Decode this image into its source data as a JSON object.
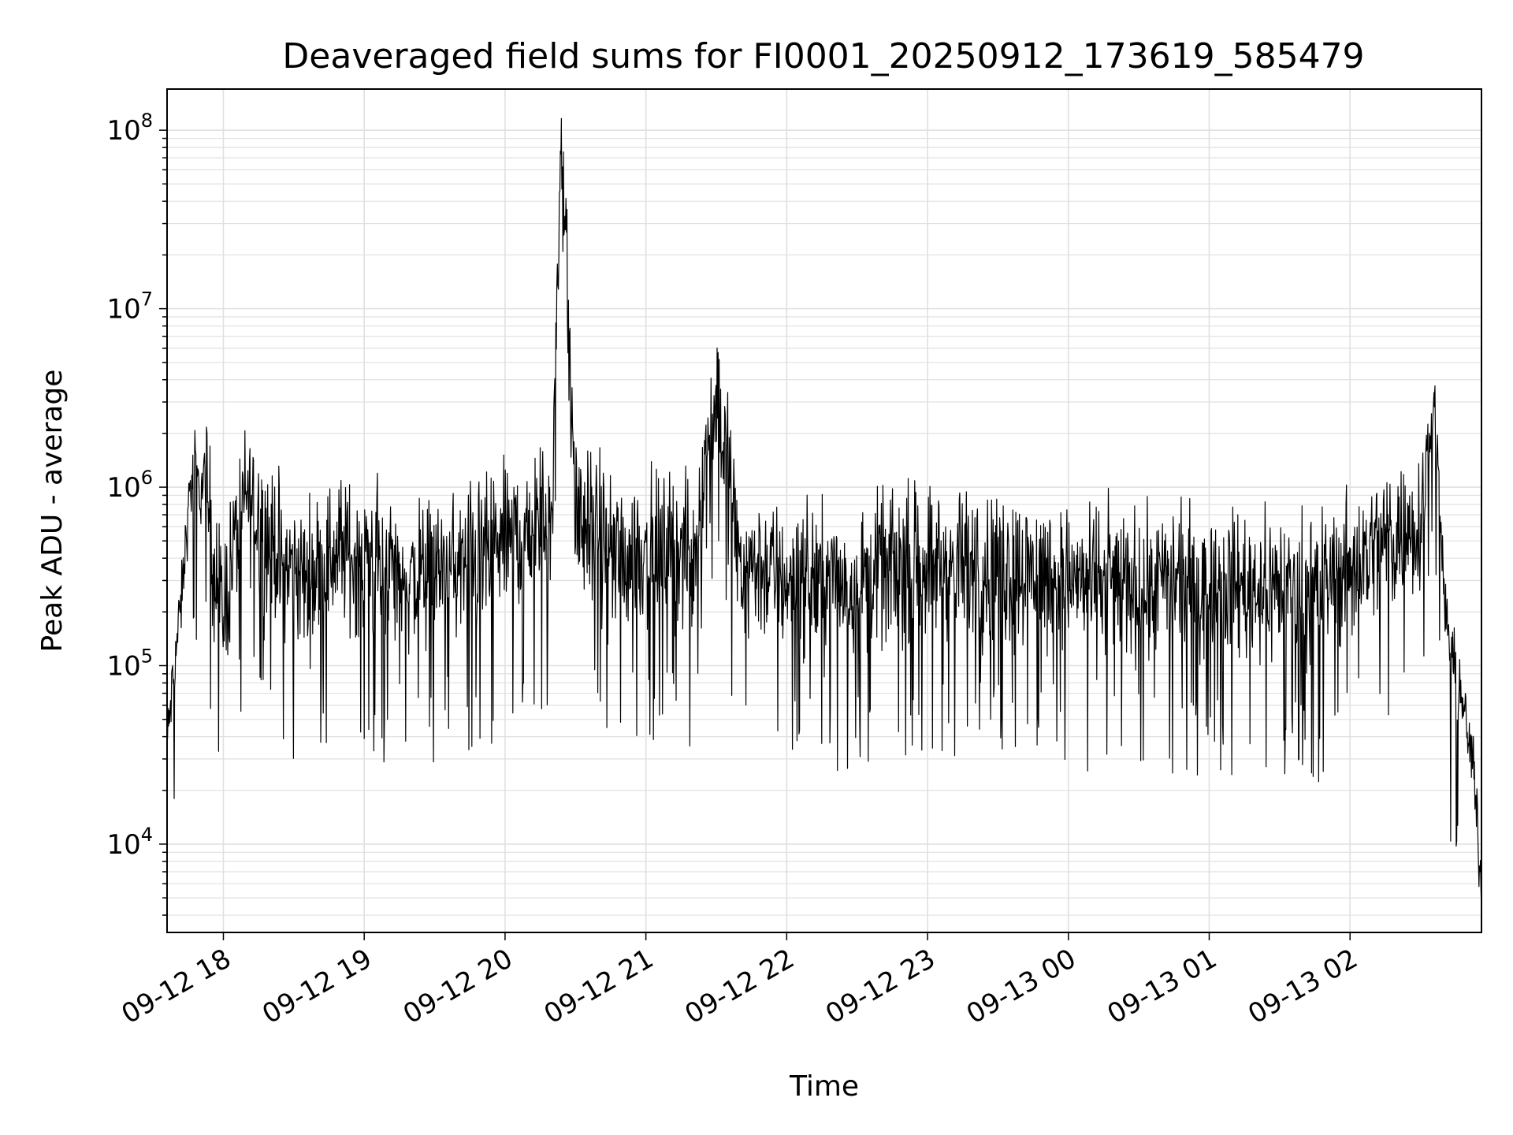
{
  "chart_data": {
    "type": "line",
    "title": "Deaveraged field sums for FI0001_20250912_173619_585479",
    "xlabel": "Time",
    "ylabel": "Peak ADU - average",
    "yscale": "log",
    "ylim": [
      3200,
      170000000
    ],
    "xlim": [
      "2025-09-12 17:36",
      "2025-09-13 02:56"
    ],
    "grid": true,
    "x_ticks": [
      "09-12 18",
      "09-12 19",
      "09-12 20",
      "09-12 21",
      "09-12 22",
      "09-12 23",
      "09-13 00",
      "09-13 01",
      "09-13 02"
    ],
    "y_ticks": [
      {
        "base": "10",
        "exp": "4",
        "value": 10000
      },
      {
        "base": "10",
        "exp": "5",
        "value": 100000
      },
      {
        "base": "10",
        "exp": "6",
        "value": 1000000
      },
      {
        "base": "10",
        "exp": "7",
        "value": 10000000
      },
      {
        "base": "10",
        "exp": "8",
        "value": 100000000
      }
    ],
    "line_color": "#000000",
    "grid_color": "#e0e0e0",
    "series": [
      {
        "x": [
          "2025-09-12 17:36",
          "2025-09-12 17:38",
          "2025-09-12 17:40",
          "2025-09-12 17:42",
          "2025-09-12 17:44",
          "2025-09-12 17:46",
          "2025-09-12 17:48",
          "2025-09-12 17:50",
          "2025-09-12 17:52",
          "2025-09-12 17:54",
          "2025-09-12 17:56",
          "2025-09-12 17:58",
          "2025-09-12 18:00",
          "2025-09-12 18:05",
          "2025-09-12 18:10",
          "2025-09-12 18:15",
          "2025-09-12 18:20",
          "2025-09-12 18:25",
          "2025-09-12 18:30",
          "2025-09-12 18:35",
          "2025-09-12 18:40",
          "2025-09-12 18:45",
          "2025-09-12 18:50",
          "2025-09-12 18:55",
          "2025-09-12 19:00",
          "2025-09-12 19:10",
          "2025-09-12 19:20",
          "2025-09-12 19:30",
          "2025-09-12 19:40",
          "2025-09-12 19:50",
          "2025-09-12 20:00",
          "2025-09-12 20:10",
          "2025-09-12 20:20",
          "2025-09-12 20:24",
          "2025-09-12 20:30",
          "2025-09-12 20:40",
          "2025-09-12 20:50",
          "2025-09-12 21:00",
          "2025-09-12 21:10",
          "2025-09-12 21:20",
          "2025-09-12 21:30",
          "2025-09-12 21:40",
          "2025-09-12 21:50",
          "2025-09-12 22:00",
          "2025-09-12 22:15",
          "2025-09-12 22:30",
          "2025-09-12 22:45",
          "2025-09-12 23:00",
          "2025-09-12 23:15",
          "2025-09-12 23:30",
          "2025-09-12 23:45",
          "2025-09-13 00:00",
          "2025-09-13 00:15",
          "2025-09-13 00:30",
          "2025-09-13 00:45",
          "2025-09-13 01:00",
          "2025-09-13 01:15",
          "2025-09-13 01:30",
          "2025-09-13 01:45",
          "2025-09-13 02:00",
          "2025-09-13 02:10",
          "2025-09-13 02:20",
          "2025-09-13 02:30",
          "2025-09-13 02:36",
          "2025-09-13 02:40",
          "2025-09-13 02:44",
          "2025-09-13 02:48",
          "2025-09-13 02:52",
          "2025-09-13 02:54",
          "2025-09-13 02:56"
        ],
        "y": [
          36000,
          70000,
          130000,
          220000,
          500000,
          1000000,
          1300000,
          900000,
          1200000,
          700000,
          400000,
          250000,
          200000,
          500000,
          900000,
          700000,
          500000,
          400000,
          350000,
          300000,
          350000,
          400000,
          450000,
          400000,
          400000,
          350000,
          300000,
          350000,
          350000,
          400000,
          500000,
          600000,
          700000,
          100000000,
          700000,
          500000,
          400000,
          450000,
          450000,
          400000,
          3700000,
          400000,
          350000,
          300000,
          300000,
          300000,
          350000,
          400000,
          350000,
          350000,
          350000,
          300000,
          300000,
          280000,
          280000,
          300000,
          280000,
          280000,
          270000,
          350000,
          450000,
          550000,
          650000,
          3300000,
          250000,
          100000,
          60000,
          30000,
          15000,
          5500
        ]
      }
    ]
  }
}
